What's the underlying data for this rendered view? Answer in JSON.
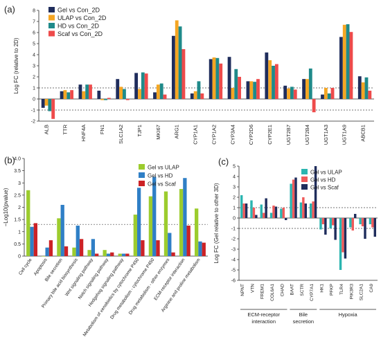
{
  "colors": {
    "navy": "#1f2d5c",
    "orange": "#f5a623",
    "teal": "#1f8a8a",
    "red": "#ee4b4b",
    "lime": "#9ccc2e",
    "blue": "#2f7fc6",
    "darkred": "#cc2226",
    "cyan": "#2bb5b0",
    "pink": "#f05a5a"
  },
  "chart_data": [
    {
      "panel": "(a)",
      "type": "bar",
      "ylabel": "Log FC (relative to 2D)",
      "ylim": [
        -2,
        8
      ],
      "yticks": [
        -2,
        -1,
        0,
        1,
        2,
        3,
        4,
        5,
        6,
        7,
        8
      ],
      "reference_lines": [
        1,
        -1
      ],
      "legend_position": "top-left",
      "categories": [
        "ALB",
        "TTR",
        "HNF4A",
        "FN1",
        "SLC1A2",
        "TJP1",
        "MKI67",
        "ARG1",
        "CYP1A1",
        "CYP1A2",
        "CYP3A4",
        "CYP2D6",
        "CYP2E1",
        "UGT2B7",
        "UGT2B4",
        "UGT1A3",
        "UGT1A9",
        "ABCB1"
      ],
      "series": [
        {
          "name": "Gel vs Con_2D",
          "color": "#1f2d5c",
          "values": [
            -0.8,
            0.7,
            1.3,
            0.75,
            1.8,
            2.35,
            0.6,
            5.7,
            0.5,
            3.6,
            3.8,
            1.6,
            4.2,
            1.2,
            1.8,
            0.4,
            5.6,
            2.05
          ]
        },
        {
          "name": "ULAP vs Con_2D",
          "color": "#f5a623",
          "values": [
            -0.6,
            0.8,
            0.7,
            -0.1,
            1.1,
            0.9,
            1.3,
            7.1,
            0.7,
            3.75,
            1.0,
            1.6,
            3.5,
            0.95,
            1.8,
            1.0,
            6.7,
            1.5
          ]
        },
        {
          "name": "HD vs Con_2D",
          "color": "#1f8a8a",
          "values": [
            -1.1,
            0.6,
            1.3,
            -0.1,
            0.9,
            2.4,
            1.4,
            6.55,
            1.6,
            3.7,
            2.7,
            1.55,
            3.0,
            1.1,
            2.75,
            0.5,
            6.75,
            1.95
          ]
        },
        {
          "name": "Scaf vs Con_2D",
          "color": "#ee4b4b",
          "values": [
            -1.8,
            0.8,
            1.3,
            0.1,
            -0.1,
            2.3,
            0.4,
            4.5,
            0.5,
            3.2,
            2.0,
            1.8,
            3.15,
            0.85,
            -1.2,
            1.0,
            6.05,
            0.75
          ]
        }
      ]
    },
    {
      "panel": "(b)",
      "type": "bar",
      "ylabel": "−Log10(pvalue)",
      "ylim": [
        0,
        4
      ],
      "yticks": [
        "0",
        "0.5",
        "1",
        "1.5",
        "2",
        "2.5",
        "3",
        "3.5",
        "4.0"
      ],
      "reference_lines": [
        1.3
      ],
      "legend_position": "top-center",
      "categories": [
        "Cell cycle",
        "Apoptosis",
        "Bile secretion",
        "Primary bile acid biosynthesis",
        "Wnt signaling pathway",
        "Notch signaling pathway",
        "Hedgehog signaling pathway",
        "Metabolism of xenobiotics by cytochrome P450",
        "Drug metabolism - cytochrome P450",
        "Drug metabolism - other enzymes",
        "ECM-receptor interaction",
        "Arginine and proline metabolism"
      ],
      "series": [
        {
          "name": "Gel vs ULAP",
          "color": "#9ccc2e",
          "values": [
            2.7,
            0.0,
            1.55,
            0.35,
            0.25,
            0.25,
            0.1,
            1.7,
            2.45,
            2.65,
            2.75,
            1.95
          ]
        },
        {
          "name": "Gel vs HD",
          "color": "#2f7fc6",
          "values": [
            1.2,
            0.35,
            2.1,
            1.25,
            0.7,
            0.1,
            0.1,
            2.8,
            3.25,
            0.95,
            3.2,
            0.6
          ]
        },
        {
          "name": "Gel vs Scaf",
          "color": "#cc2226",
          "values": [
            1.35,
            0.65,
            0.4,
            0.7,
            0.1,
            0.15,
            0.1,
            0.65,
            0.65,
            0.15,
            1.25,
            0.55
          ]
        }
      ]
    },
    {
      "panel": "(c)",
      "type": "bar",
      "ylabel": "Log FC (Gel relative to other 3D)",
      "ylim": [
        -6,
        5
      ],
      "yticks": [
        -6,
        -5,
        -4,
        -3,
        -2,
        -1,
        0,
        1,
        2,
        3,
        4,
        5
      ],
      "reference_lines": [
        1,
        -1
      ],
      "legend_position": "top-center",
      "categories": [
        "NPNT",
        "VTN",
        "FREM1",
        "COL6A1",
        "CHAD",
        "BAAT",
        "SCTR",
        "CYP7A1",
        "HK1",
        "PFKP",
        "TLR4",
        "PIK3R3",
        "SLC2A1",
        "CA9"
      ],
      "groups": [
        {
          "label": "ECM-receptor interaction",
          "categories": [
            "NPNT",
            "VTN",
            "FREM1",
            "COL6A1",
            "CHAD"
          ]
        },
        {
          "label": "Bile secretion",
          "categories": [
            "BAAT",
            "SCTR",
            "CYP7A1"
          ]
        },
        {
          "label": "Hypoxia",
          "categories": [
            "HK1",
            "PFKP",
            "TLR4",
            "PIK3R3",
            "SLC2A1",
            "CA9"
          ]
        }
      ],
      "series": [
        {
          "name": "Gel vs ULAP",
          "color": "#2bb5b0",
          "values": [
            2.2,
            1.7,
            1.3,
            0.5,
            0.9,
            3.3,
            1.5,
            1.4,
            -1.1,
            -1.0,
            -5.0,
            -0.9,
            -0.6,
            -0.6
          ]
        },
        {
          "name": "Gel vs HD",
          "color": "#f05a5a",
          "values": [
            1.4,
            1.0,
            0.5,
            1.2,
            1.0,
            3.7,
            2.0,
            1.6,
            -0.6,
            -0.7,
            -3.3,
            -1.2,
            -0.8,
            -0.9
          ]
        },
        {
          "name": "Gel vs Scaf",
          "color": "#1f2d5c",
          "values": [
            1.4,
            0.3,
            1.9,
            1.1,
            -0.2,
            3.9,
            1.4,
            5.0,
            -1.6,
            -2.1,
            -3.9,
            0.4,
            -2.0,
            -1.8
          ]
        }
      ]
    }
  ]
}
